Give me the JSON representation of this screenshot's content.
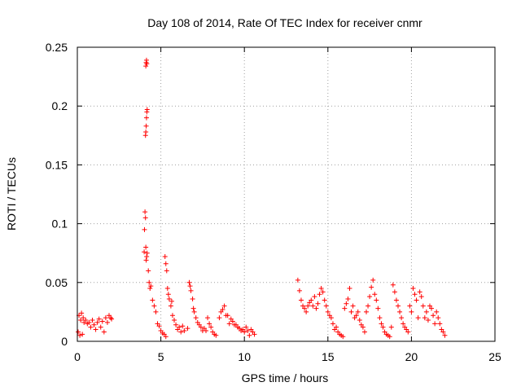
{
  "colors": {
    "series": "#ff0000",
    "grid": "#a0a0a0",
    "axis": "#000000",
    "background": "#ffffff"
  },
  "chart_data": {
    "type": "scatter",
    "title": "Day 108 of 2014, Rate Of TEC Index for receiver cnmr",
    "xlabel": "GPS time / hours",
    "ylabel": "ROTI / TECUs",
    "xlim": [
      0,
      25
    ],
    "ylim": [
      0,
      0.25
    ],
    "x_ticks": [
      0,
      5,
      10,
      15,
      20,
      25
    ],
    "x_tick_labels": [
      "0",
      "5",
      "10",
      "15",
      "20",
      "25"
    ],
    "y_ticks": [
      0,
      0.05,
      0.1,
      0.15,
      0.2,
      0.25
    ],
    "y_tick_labels": [
      "0",
      "0.05",
      "0.1",
      "0.15",
      "0.2",
      "0.25"
    ],
    "grid": true,
    "marker": "+",
    "series": [
      {
        "name": "ROTI",
        "points": [
          [
            0.05,
            0.008
          ],
          [
            0.1,
            0.022
          ],
          [
            0.15,
            0.005
          ],
          [
            0.2,
            0.018
          ],
          [
            0.25,
            0.024
          ],
          [
            0.3,
            0.006
          ],
          [
            0.35,
            0.02
          ],
          [
            0.4,
            0.016
          ],
          [
            0.5,
            0.018
          ],
          [
            0.6,
            0.015
          ],
          [
            0.7,
            0.016
          ],
          [
            0.8,
            0.012
          ],
          [
            0.9,
            0.018
          ],
          [
            1.0,
            0.014
          ],
          [
            1.1,
            0.01
          ],
          [
            1.2,
            0.016
          ],
          [
            1.3,
            0.019
          ],
          [
            1.4,
            0.012
          ],
          [
            1.5,
            0.017
          ],
          [
            1.6,
            0.008
          ],
          [
            1.7,
            0.02
          ],
          [
            1.8,
            0.016
          ],
          [
            1.9,
            0.022
          ],
          [
            2.0,
            0.02
          ],
          [
            2.05,
            0.019
          ],
          [
            4.0,
            0.076
          ],
          [
            4.02,
            0.095
          ],
          [
            4.05,
            0.11
          ],
          [
            4.08,
            0.105
          ],
          [
            4.1,
            0.08
          ],
          [
            4.12,
            0.069
          ],
          [
            4.15,
            0.072
          ],
          [
            4.18,
            0.075
          ],
          [
            4.08,
            0.175
          ],
          [
            4.1,
            0.178
          ],
          [
            4.12,
            0.183
          ],
          [
            4.14,
            0.19
          ],
          [
            4.16,
            0.195
          ],
          [
            4.18,
            0.197
          ],
          [
            4.1,
            0.234
          ],
          [
            4.12,
            0.237
          ],
          [
            4.14,
            0.239
          ],
          [
            4.16,
            0.236
          ],
          [
            4.25,
            0.06
          ],
          [
            4.3,
            0.05
          ],
          [
            4.35,
            0.045
          ],
          [
            4.4,
            0.047
          ],
          [
            4.5,
            0.035
          ],
          [
            4.6,
            0.03
          ],
          [
            4.7,
            0.025
          ],
          [
            4.8,
            0.015
          ],
          [
            4.9,
            0.013
          ],
          [
            5.0,
            0.009
          ],
          [
            5.1,
            0.007
          ],
          [
            5.2,
            0.006
          ],
          [
            5.3,
            0.004
          ],
          [
            5.25,
            0.072
          ],
          [
            5.3,
            0.066
          ],
          [
            5.35,
            0.06
          ],
          [
            5.4,
            0.045
          ],
          [
            5.45,
            0.04
          ],
          [
            5.5,
            0.036
          ],
          [
            5.6,
            0.03
          ],
          [
            5.65,
            0.034
          ],
          [
            5.7,
            0.022
          ],
          [
            5.8,
            0.018
          ],
          [
            5.9,
            0.014
          ],
          [
            6.0,
            0.01
          ],
          [
            6.1,
            0.012
          ],
          [
            6.2,
            0.008
          ],
          [
            6.3,
            0.013
          ],
          [
            6.4,
            0.009
          ],
          [
            6.6,
            0.011
          ],
          [
            6.7,
            0.05
          ],
          [
            6.75,
            0.047
          ],
          [
            6.8,
            0.043
          ],
          [
            6.9,
            0.036
          ],
          [
            6.95,
            0.028
          ],
          [
            7.0,
            0.025
          ],
          [
            7.1,
            0.02
          ],
          [
            7.2,
            0.016
          ],
          [
            7.3,
            0.014
          ],
          [
            7.4,
            0.012
          ],
          [
            7.5,
            0.009
          ],
          [
            7.6,
            0.011
          ],
          [
            7.7,
            0.009
          ],
          [
            7.8,
            0.02
          ],
          [
            7.9,
            0.015
          ],
          [
            8.0,
            0.012
          ],
          [
            8.1,
            0.008
          ],
          [
            8.2,
            0.006
          ],
          [
            8.3,
            0.005
          ],
          [
            8.5,
            0.02
          ],
          [
            8.6,
            0.025
          ],
          [
            8.7,
            0.027
          ],
          [
            8.8,
            0.03
          ],
          [
            8.9,
            0.022
          ],
          [
            9.0,
            0.022
          ],
          [
            9.1,
            0.015
          ],
          [
            9.2,
            0.019
          ],
          [
            9.3,
            0.017
          ],
          [
            9.4,
            0.014
          ],
          [
            9.5,
            0.014
          ],
          [
            9.6,
            0.012
          ],
          [
            9.7,
            0.011
          ],
          [
            9.8,
            0.009
          ],
          [
            9.9,
            0.01
          ],
          [
            10.0,
            0.008
          ],
          [
            10.1,
            0.012
          ],
          [
            10.2,
            0.009
          ],
          [
            10.3,
            0.005
          ],
          [
            10.4,
            0.01
          ],
          [
            10.5,
            0.008
          ],
          [
            10.6,
            0.006
          ],
          [
            13.2,
            0.052
          ],
          [
            13.3,
            0.043
          ],
          [
            13.4,
            0.035
          ],
          [
            13.5,
            0.03
          ],
          [
            13.6,
            0.028
          ],
          [
            13.7,
            0.025
          ],
          [
            13.8,
            0.03
          ],
          [
            13.9,
            0.033
          ],
          [
            14.0,
            0.035
          ],
          [
            14.1,
            0.03
          ],
          [
            14.2,
            0.038
          ],
          [
            14.3,
            0.028
          ],
          [
            14.4,
            0.032
          ],
          [
            14.5,
            0.04
          ],
          [
            14.6,
            0.045
          ],
          [
            14.7,
            0.042
          ],
          [
            14.8,
            0.035
          ],
          [
            14.9,
            0.03
          ],
          [
            15.0,
            0.025
          ],
          [
            15.1,
            0.022
          ],
          [
            15.2,
            0.02
          ],
          [
            15.3,
            0.015
          ],
          [
            15.4,
            0.01
          ],
          [
            15.5,
            0.012
          ],
          [
            15.6,
            0.008
          ],
          [
            15.7,
            0.006
          ],
          [
            15.8,
            0.005
          ],
          [
            15.9,
            0.004
          ],
          [
            16.0,
            0.028
          ],
          [
            16.1,
            0.032
          ],
          [
            16.2,
            0.036
          ],
          [
            16.3,
            0.045
          ],
          [
            16.4,
            0.025
          ],
          [
            16.5,
            0.03
          ],
          [
            16.6,
            0.02
          ],
          [
            16.7,
            0.022
          ],
          [
            16.8,
            0.025
          ],
          [
            16.9,
            0.018
          ],
          [
            17.0,
            0.014
          ],
          [
            17.1,
            0.012
          ],
          [
            17.2,
            0.008
          ],
          [
            17.3,
            0.025
          ],
          [
            17.4,
            0.03
          ],
          [
            17.5,
            0.038
          ],
          [
            17.6,
            0.046
          ],
          [
            17.7,
            0.052
          ],
          [
            17.8,
            0.04
          ],
          [
            17.9,
            0.035
          ],
          [
            18.0,
            0.028
          ],
          [
            18.1,
            0.02
          ],
          [
            18.2,
            0.015
          ],
          [
            18.3,
            0.012
          ],
          [
            18.4,
            0.008
          ],
          [
            18.5,
            0.006
          ],
          [
            18.6,
            0.005
          ],
          [
            18.7,
            0.004
          ],
          [
            18.8,
            0.012
          ],
          [
            18.9,
            0.048
          ],
          [
            19.0,
            0.042
          ],
          [
            19.1,
            0.035
          ],
          [
            19.2,
            0.03
          ],
          [
            19.3,
            0.025
          ],
          [
            19.4,
            0.02
          ],
          [
            19.5,
            0.015
          ],
          [
            19.6,
            0.012
          ],
          [
            19.7,
            0.01
          ],
          [
            19.8,
            0.008
          ],
          [
            19.9,
            0.03
          ],
          [
            20.0,
            0.025
          ],
          [
            20.1,
            0.045
          ],
          [
            20.2,
            0.04
          ],
          [
            20.3,
            0.035
          ],
          [
            20.4,
            0.02
          ],
          [
            20.5,
            0.042
          ],
          [
            20.6,
            0.038
          ],
          [
            20.7,
            0.03
          ],
          [
            20.8,
            0.02
          ],
          [
            20.9,
            0.025
          ],
          [
            21.0,
            0.018
          ],
          [
            21.1,
            0.03
          ],
          [
            21.2,
            0.028
          ],
          [
            21.3,
            0.022
          ],
          [
            21.4,
            0.015
          ],
          [
            21.5,
            0.025
          ],
          [
            21.6,
            0.02
          ],
          [
            21.7,
            0.015
          ],
          [
            21.8,
            0.01
          ],
          [
            21.9,
            0.008
          ],
          [
            22.0,
            0.005
          ]
        ]
      }
    ]
  }
}
